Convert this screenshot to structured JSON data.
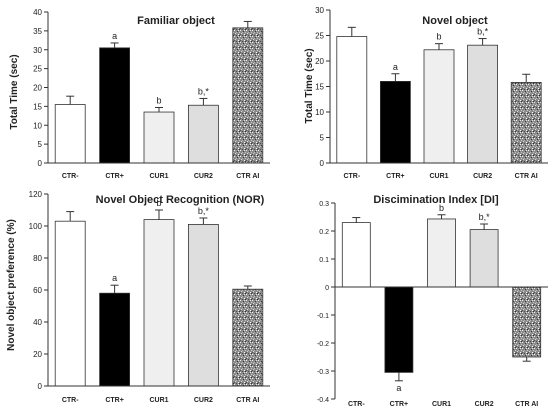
{
  "chart_data": [
    {
      "type": "bar",
      "title": "Familiar object",
      "ylabel": "Total Time (sec)",
      "xlabel": "",
      "categories": [
        "CTR-",
        "CTR+",
        "CUR1",
        "CUR2",
        "CTR AI"
      ],
      "values": [
        15.5,
        30.5,
        13.5,
        15.3,
        35.8
      ],
      "errors": [
        2.2,
        1.3,
        1.2,
        1.8,
        1.7
      ],
      "labels": [
        "",
        "a",
        "b",
        "b,*",
        ""
      ],
      "ylim": [
        0,
        40
      ],
      "yticks": [
        0,
        5,
        10,
        15,
        20,
        25,
        30,
        35,
        40
      ],
      "yticklabels": [
        "0",
        "5",
        "10",
        "15",
        "20",
        "25",
        "30",
        "35",
        "40"
      ],
      "fills": [
        "white",
        "black",
        "light",
        "mid",
        "speckle"
      ]
    },
    {
      "type": "bar",
      "title": "Novel object",
      "ylabel": "Total Time (sec)",
      "xlabel": "",
      "categories": [
        "CTR-",
        "CTR+",
        "CUR1",
        "CUR2",
        "CTR AI"
      ],
      "values": [
        24.8,
        16.0,
        22.2,
        23.1,
        15.8
      ],
      "errors": [
        1.8,
        1.5,
        1.2,
        1.3,
        1.6
      ],
      "labels": [
        "",
        "a",
        "b",
        "b,*",
        ""
      ],
      "ylim": [
        0,
        30
      ],
      "yticks": [
        0,
        5,
        10,
        15,
        20,
        25,
        30
      ],
      "yticklabels": [
        "0",
        "5",
        "10",
        "15",
        "20",
        "25",
        "30"
      ],
      "fills": [
        "white",
        "black",
        "light",
        "mid",
        "speckle"
      ]
    },
    {
      "type": "bar",
      "title": "Novel Object Recognition (NOR)",
      "ylabel": "Novel object preference (%)",
      "xlabel": "",
      "categories": [
        "CTR-",
        "CTR+",
        "CUR1",
        "CUR2",
        "CTR AI"
      ],
      "values": [
        103,
        58,
        104,
        101,
        60.5
      ],
      "errors": [
        6,
        5,
        6,
        4,
        2
      ],
      "labels": [
        "",
        "a",
        "b",
        "b,*",
        ""
      ],
      "ylim": [
        0,
        120
      ],
      "yticks": [
        0,
        20,
        40,
        60,
        80,
        100,
        120
      ],
      "yticklabels": [
        "0",
        "20",
        "40",
        "60",
        "80",
        "100",
        "120"
      ],
      "fills": [
        "white",
        "black",
        "light",
        "mid",
        "speckle"
      ]
    },
    {
      "type": "bar",
      "title": "Discimination Index [DI]",
      "ylabel": "",
      "xlabel": "",
      "categories": [
        "CTR-",
        "CTR+",
        "CUR1",
        "CUR2",
        "CTR AI"
      ],
      "values": [
        0.23,
        -0.305,
        0.243,
        0.205,
        -0.25
      ],
      "errors": [
        0.018,
        0.03,
        0.015,
        0.02,
        0.015
      ],
      "labels": [
        "",
        "a",
        "b",
        "b,*",
        ""
      ],
      "ylim": [
        -0.4,
        0.3
      ],
      "yticks": [
        -0.4,
        -0.3,
        -0.2,
        -0.1,
        0,
        0.1,
        0.2,
        0.3
      ],
      "yticklabels": [
        "-0.4",
        "-0.3",
        "-0.2",
        "-0.1",
        "0",
        "0.1",
        "0.2",
        "0.3"
      ],
      "fills": [
        "white",
        "black",
        "light",
        "mid",
        "speckle"
      ]
    }
  ],
  "colors": {
    "white": "#ffffff",
    "black": "#000000",
    "light": "#efefef",
    "mid": "#dedede",
    "edge": "#333333"
  }
}
